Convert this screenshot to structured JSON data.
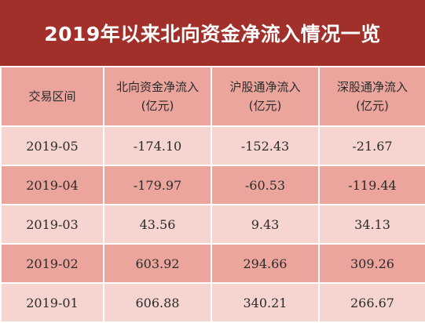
{
  "title": "2019年以来北向资金净流入情况一览",
  "columns": [
    {
      "line1": "交易区间",
      "line2": ""
    },
    {
      "line1": "北向资金净流入",
      "line2": "(亿元)"
    },
    {
      "line1": "沪股通净流入",
      "line2": "(亿元)"
    },
    {
      "line1": "深股通净流入",
      "line2": "(亿元)"
    }
  ],
  "rows": [
    [
      "2019-05",
      "-174.10",
      "-152.43",
      "-21.67"
    ],
    [
      "2019-04",
      "-179.97",
      "-60.53",
      "-119.44"
    ],
    [
      "2019-03",
      "43.56",
      "9.43",
      "34.13"
    ],
    [
      "2019-02",
      "603.92",
      "294.66",
      "309.26"
    ],
    [
      "2019-01",
      "606.88",
      "340.21",
      "266.67"
    ]
  ],
  "colors": {
    "title_bg": "#a2302a",
    "row_dark": "#eba59d",
    "row_light": "#f6d4cf"
  }
}
